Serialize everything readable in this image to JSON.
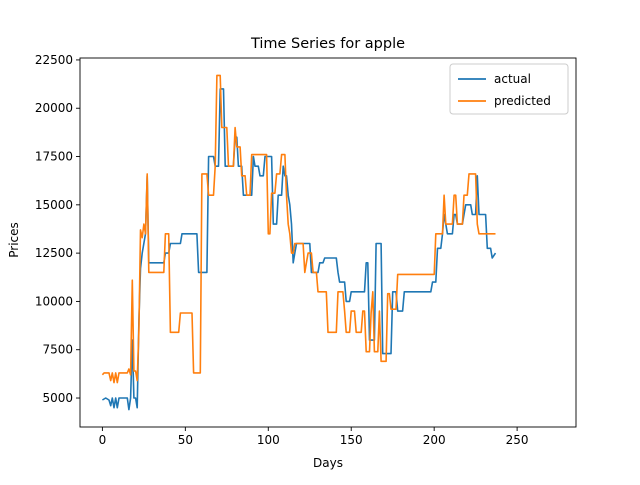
{
  "chart_data": {
    "type": "line",
    "title": "Time Series for apple",
    "xlabel": "Days",
    "ylabel": "Prices",
    "xlim": [
      -13.5,
      285.5
    ],
    "ylim": [
      3500,
      22600
    ],
    "xticks": [
      0,
      50,
      100,
      150,
      200,
      250
    ],
    "yticks": [
      5000,
      7500,
      10000,
      12500,
      15000,
      17500,
      20000,
      22500
    ],
    "grid": false,
    "legend_position": "upper right",
    "colors": {
      "actual": "#1f77b4",
      "predicted": "#ff7f0e"
    },
    "series": [
      {
        "name": "actual",
        "points": [
          [
            0,
            4900
          ],
          [
            2,
            5000
          ],
          [
            4,
            4900
          ],
          [
            5,
            4600
          ],
          [
            6,
            5000
          ],
          [
            7,
            4500
          ],
          [
            8,
            5000
          ],
          [
            9,
            4500
          ],
          [
            10,
            5000
          ],
          [
            13,
            5000
          ],
          [
            15,
            5000
          ],
          [
            16,
            4400
          ],
          [
            17,
            5000
          ],
          [
            18,
            8000
          ],
          [
            19,
            5000
          ],
          [
            20,
            5000
          ],
          [
            21,
            4500
          ],
          [
            22,
            9000
          ],
          [
            23,
            11700
          ],
          [
            24,
            12500
          ],
          [
            26,
            13500
          ],
          [
            27,
            16500
          ],
          [
            28,
            12000
          ],
          [
            29,
            12000
          ],
          [
            37,
            12000
          ],
          [
            38,
            12500
          ],
          [
            40,
            12500
          ],
          [
            41,
            13000
          ],
          [
            47,
            13000
          ],
          [
            48,
            13500
          ],
          [
            57,
            13500
          ],
          [
            58,
            11500
          ],
          [
            63,
            11500
          ],
          [
            64,
            17500
          ],
          [
            67,
            17500
          ],
          [
            68,
            17000
          ],
          [
            70,
            17000
          ],
          [
            71,
            21000
          ],
          [
            73,
            21000
          ],
          [
            74,
            17000
          ],
          [
            79,
            17000
          ],
          [
            80,
            18500
          ],
          [
            81,
            18500
          ],
          [
            82,
            17000
          ],
          [
            84,
            17000
          ],
          [
            85,
            15500
          ],
          [
            90,
            15500
          ],
          [
            91,
            17500
          ],
          [
            92,
            17000
          ],
          [
            94,
            17000
          ],
          [
            95,
            16500
          ],
          [
            97,
            16500
          ],
          [
            98,
            17500
          ],
          [
            102,
            17500
          ],
          [
            103,
            14000
          ],
          [
            105,
            14000
          ],
          [
            106,
            15500
          ],
          [
            108,
            15500
          ],
          [
            109,
            17000
          ],
          [
            110,
            16500
          ],
          [
            111,
            16500
          ],
          [
            112,
            15500
          ],
          [
            113,
            15000
          ],
          [
            114,
            14000
          ],
          [
            115,
            12000
          ],
          [
            116,
            12500
          ],
          [
            117,
            13000
          ],
          [
            125,
            13000
          ],
          [
            126,
            11500
          ],
          [
            130,
            11500
          ],
          [
            131,
            12000
          ],
          [
            133,
            12000
          ],
          [
            134,
            12250
          ],
          [
            141,
            12250
          ],
          [
            142,
            11500
          ],
          [
            143,
            11000
          ],
          [
            146,
            11000
          ],
          [
            147,
            10000
          ],
          [
            149,
            10000
          ],
          [
            150,
            10500
          ],
          [
            158,
            10500
          ],
          [
            159,
            12000
          ],
          [
            160,
            12000
          ],
          [
            161,
            8000
          ],
          [
            164,
            8000
          ],
          [
            165,
            13000
          ],
          [
            168,
            13000
          ],
          [
            169,
            7300
          ],
          [
            174,
            7300
          ],
          [
            175,
            10500
          ],
          [
            177,
            10500
          ],
          [
            178,
            9500
          ],
          [
            181,
            9500
          ],
          [
            182,
            10500
          ],
          [
            198,
            10500
          ],
          [
            199,
            11000
          ],
          [
            201,
            11000
          ],
          [
            202,
            12750
          ],
          [
            204,
            12750
          ],
          [
            205,
            13500
          ],
          [
            206,
            14500
          ],
          [
            207,
            14000
          ],
          [
            208,
            13500
          ],
          [
            211,
            13500
          ],
          [
            212,
            14500
          ],
          [
            213,
            14500
          ],
          [
            214,
            14000
          ],
          [
            217,
            14000
          ],
          [
            218,
            14500
          ],
          [
            219,
            15000
          ],
          [
            222,
            15000
          ],
          [
            223,
            14500
          ],
          [
            225,
            14500
          ],
          [
            226,
            16500
          ],
          [
            227,
            14500
          ],
          [
            231,
            14500
          ],
          [
            232,
            12750
          ],
          [
            234,
            12750
          ],
          [
            235,
            12250
          ],
          [
            237,
            12500
          ]
        ]
      },
      {
        "name": "predicted",
        "points": [
          [
            0,
            6200
          ],
          [
            1,
            6300
          ],
          [
            4,
            6300
          ],
          [
            5,
            5900
          ],
          [
            6,
            6300
          ],
          [
            7,
            5800
          ],
          [
            8,
            6300
          ],
          [
            9,
            5800
          ],
          [
            10,
            6300
          ],
          [
            15,
            6300
          ],
          [
            16,
            6500
          ],
          [
            17,
            6200
          ],
          [
            18,
            11100
          ],
          [
            19,
            6400
          ],
          [
            20,
            6400
          ],
          [
            21,
            5900
          ],
          [
            22,
            8500
          ],
          [
            23,
            13700
          ],
          [
            24,
            13300
          ],
          [
            25,
            14000
          ],
          [
            26,
            13500
          ],
          [
            27,
            16600
          ],
          [
            28,
            11500
          ],
          [
            29,
            11500
          ],
          [
            37,
            11500
          ],
          [
            38,
            13500
          ],
          [
            40,
            13500
          ],
          [
            41,
            8400
          ],
          [
            46,
            8400
          ],
          [
            47,
            9400
          ],
          [
            54,
            9400
          ],
          [
            55,
            6300
          ],
          [
            59,
            6300
          ],
          [
            60,
            16600
          ],
          [
            63,
            16600
          ],
          [
            64,
            15500
          ],
          [
            67,
            15500
          ],
          [
            68,
            17000
          ],
          [
            69,
            21700
          ],
          [
            71,
            21700
          ],
          [
            72,
            19000
          ],
          [
            75,
            19000
          ],
          [
            76,
            17000
          ],
          [
            79,
            17000
          ],
          [
            80,
            19000
          ],
          [
            81,
            18000
          ],
          [
            83,
            18000
          ],
          [
            84,
            16500
          ],
          [
            86,
            16500
          ],
          [
            87,
            15500
          ],
          [
            89,
            15500
          ],
          [
            90,
            17600
          ],
          [
            99,
            17600
          ],
          [
            100,
            13500
          ],
          [
            101,
            13500
          ],
          [
            102,
            15600
          ],
          [
            104,
            15600
          ],
          [
            105,
            16600
          ],
          [
            107,
            16600
          ],
          [
            108,
            17600
          ],
          [
            110,
            17600
          ],
          [
            111,
            15500
          ],
          [
            112,
            14000
          ],
          [
            113,
            13500
          ],
          [
            114,
            12500
          ],
          [
            115,
            12500
          ],
          [
            116,
            13000
          ],
          [
            121,
            13000
          ],
          [
            122,
            11500
          ],
          [
            123,
            12000
          ],
          [
            124,
            12500
          ],
          [
            126,
            12500
          ],
          [
            127,
            11500
          ],
          [
            129,
            11500
          ],
          [
            130,
            10500
          ],
          [
            135,
            10500
          ],
          [
            136,
            8400
          ],
          [
            141,
            8400
          ],
          [
            142,
            10500
          ],
          [
            145,
            10500
          ],
          [
            146,
            9500
          ],
          [
            147,
            8400
          ],
          [
            149,
            8400
          ],
          [
            150,
            9500
          ],
          [
            152,
            9500
          ],
          [
            153,
            8400
          ],
          [
            156,
            8400
          ],
          [
            157,
            9500
          ],
          [
            158,
            9500
          ],
          [
            159,
            7400
          ],
          [
            161,
            7400
          ],
          [
            162,
            9400
          ],
          [
            163,
            10500
          ],
          [
            164,
            7400
          ],
          [
            166,
            7400
          ],
          [
            167,
            9500
          ],
          [
            168,
            6900
          ],
          [
            171,
            6900
          ],
          [
            172,
            10400
          ],
          [
            173,
            10400
          ],
          [
            174,
            9600
          ],
          [
            177,
            9600
          ],
          [
            178,
            11400
          ],
          [
            200,
            11400
          ],
          [
            201,
            13500
          ],
          [
            205,
            13500
          ],
          [
            206,
            15500
          ],
          [
            207,
            14000
          ],
          [
            211,
            14000
          ],
          [
            212,
            15500
          ],
          [
            213,
            15500
          ],
          [
            214,
            14000
          ],
          [
            217,
            14000
          ],
          [
            218,
            15500
          ],
          [
            220,
            15500
          ],
          [
            221,
            16600
          ],
          [
            225,
            16600
          ],
          [
            226,
            14000
          ],
          [
            227,
            13500
          ],
          [
            237,
            13500
          ]
        ]
      }
    ]
  }
}
